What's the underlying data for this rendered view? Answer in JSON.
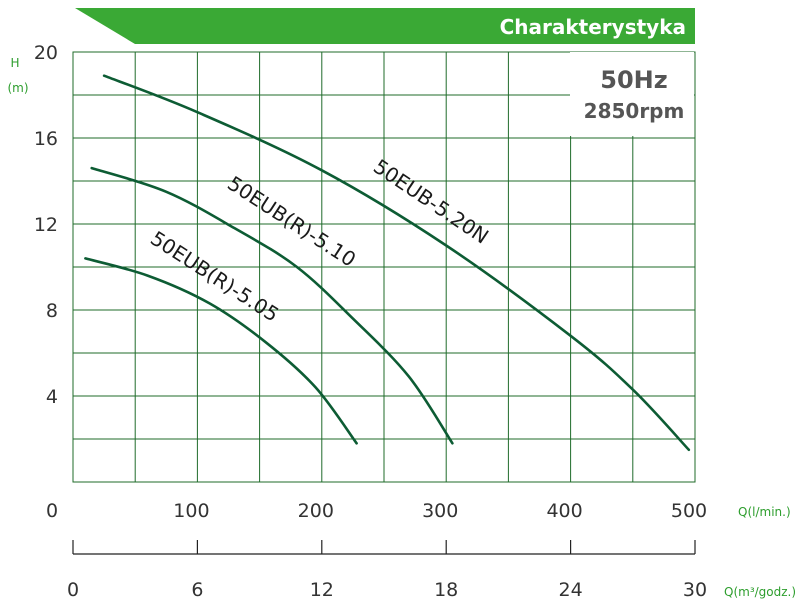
{
  "banner": {
    "title": "Charakterystyka",
    "color": "#3aa935"
  },
  "info_box": {
    "frequency": "50Hz",
    "speed": "2850rpm"
  },
  "colors": {
    "curve": "#0d5c34",
    "grid": "#1f6b2a",
    "accent_text": "#2e9e2e"
  },
  "chart_data": {
    "type": "line",
    "title": "Charakterystyka",
    "y_axis": {
      "label_symbol": "H",
      "label_unit": "(m)",
      "range": [
        0,
        20
      ],
      "ticks": [
        0,
        4,
        8,
        12,
        16,
        20
      ],
      "tick_labels": [
        "4",
        "8",
        "12",
        "16",
        "20"
      ]
    },
    "x_axis_primary": {
      "label": "Q(l/min.)",
      "range": [
        0,
        500
      ],
      "ticks": [
        0,
        100,
        200,
        300,
        400,
        500
      ],
      "tick_labels": [
        "0",
        "100",
        "200",
        "300",
        "400",
        "500"
      ]
    },
    "x_axis_secondary": {
      "label": "Q(m³/godz.)",
      "range": [
        0,
        30
      ],
      "ticks": [
        0,
        6,
        12,
        18,
        24,
        30
      ],
      "tick_labels": [
        "0",
        "6",
        "12",
        "18",
        "24",
        "30"
      ]
    },
    "grid": true,
    "series": [
      {
        "name": "50EUB-5.20N",
        "points": [
          [
            25,
            18.9
          ],
          [
            100,
            17.2
          ],
          [
            200,
            14.5
          ],
          [
            300,
            11.0
          ],
          [
            400,
            6.8
          ],
          [
            450,
            4.3
          ],
          [
            495,
            1.5
          ]
        ]
      },
      {
        "name": "50EUB(R)-5.10",
        "points": [
          [
            15,
            14.6
          ],
          [
            75,
            13.5
          ],
          [
            130,
            11.8
          ],
          [
            180,
            10.0
          ],
          [
            225,
            7.6
          ],
          [
            270,
            4.9
          ],
          [
            305,
            1.8
          ]
        ]
      },
      {
        "name": "50EUB(R)-5.05",
        "points": [
          [
            10,
            10.4
          ],
          [
            60,
            9.6
          ],
          [
            110,
            8.3
          ],
          [
            155,
            6.5
          ],
          [
            195,
            4.4
          ],
          [
            228,
            1.8
          ]
        ]
      }
    ]
  }
}
